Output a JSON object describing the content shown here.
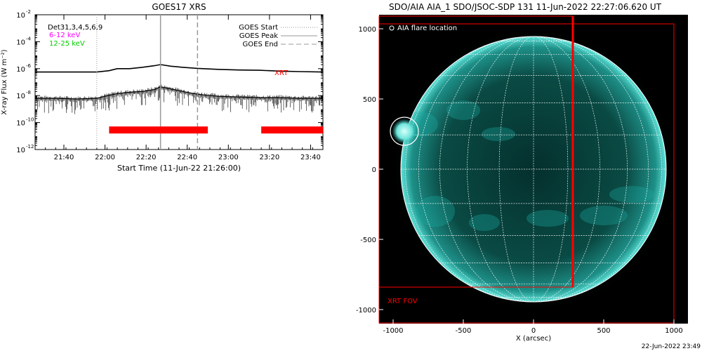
{
  "chart_data": [
    {
      "type": "line",
      "title": "GOES17 XRS",
      "xlabel": "Start Time (11-Jun-22 21:26:00)",
      "ylabel": "X-ray Flux (W m⁻²)",
      "y_scale": "log",
      "ylim_exponent": [
        -12,
        -2
      ],
      "xlim_minutes_from_start": [
        0,
        140
      ],
      "x_tick_labels": [
        "21:40",
        "22:00",
        "22:20",
        "22:40",
        "23:00",
        "23:20",
        "23:40"
      ],
      "y_tick_labels": [
        {
          "base": "10",
          "exp": "-2"
        },
        {
          "base": "10",
          "exp": "-4"
        },
        {
          "base": "10",
          "exp": "-6"
        },
        {
          "base": "10",
          "exp": "-8"
        },
        {
          "base": "10",
          "exp": "-10"
        },
        {
          "base": "10",
          "exp": "-12"
        }
      ],
      "annotations": {
        "detectors": "Det31,3,4,5,6,9",
        "band_low": "6-12 keV",
        "band_high": "12-25 keV",
        "xrt": "XRT"
      },
      "legend": {
        "placement": "top-right",
        "entries": [
          {
            "label": "GOES Start",
            "style": "dotted"
          },
          {
            "label": "GOES Peak",
            "style": "solid"
          },
          {
            "label": "GOES End",
            "style": "dashed"
          }
        ]
      },
      "events": {
        "goes_start": "21:56",
        "goes_peak": "22:27",
        "goes_end": "22:45"
      },
      "series": [
        {
          "name": "6-12 keV",
          "x": [
            "21:26",
            "21:36",
            "21:46",
            "21:56",
            "22:02",
            "22:06",
            "22:12",
            "22:18",
            "22:24",
            "22:27",
            "22:32",
            "22:38",
            "22:45",
            "22:55",
            "23:05",
            "23:15",
            "23:25",
            "23:35",
            "23:46"
          ],
          "y_exp": [
            -6.25,
            -6.25,
            -6.25,
            -6.25,
            -6.15,
            -6.0,
            -6.0,
            -5.9,
            -5.78,
            -5.7,
            -5.82,
            -5.9,
            -5.98,
            -6.05,
            -6.1,
            -6.12,
            -6.18,
            -6.22,
            -6.25
          ]
        },
        {
          "name": "12-25 keV",
          "x": [
            "21:26",
            "21:36",
            "21:46",
            "21:56",
            "22:00",
            "22:06",
            "22:12",
            "22:18",
            "22:24",
            "22:27",
            "22:32",
            "22:38",
            "22:45",
            "22:55",
            "23:05",
            "23:15",
            "23:25",
            "23:35",
            "23:46"
          ],
          "y_exp": [
            -8.2,
            -8.2,
            -8.25,
            -8.2,
            -8.05,
            -7.85,
            -7.75,
            -7.7,
            -7.55,
            -7.35,
            -7.5,
            -7.7,
            -7.9,
            -8.05,
            -8.1,
            -8.15,
            -8.15,
            -8.2,
            -8.2
          ]
        }
      ],
      "coverage_bars": {
        "name": "XRT",
        "color": "#ff0000",
        "intervals": [
          [
            "22:02",
            "22:50"
          ],
          [
            "23:16",
            "23:46"
          ]
        ]
      },
      "colors": {
        "band_low": "#ff00ff",
        "band_high": "#00cc00",
        "xrt": "#ff0000",
        "peak": "#999999"
      }
    },
    {
      "type": "scatter",
      "title": "SDO/AIA AIA_1 SDO/JSOC-SDP 131 11-Jun-2022 22:27:06.620 UT",
      "xlabel": "X (arcsec)",
      "ylabel": "",
      "xlim": [
        -1100,
        1100
      ],
      "ylim": [
        -1100,
        1100
      ],
      "x_tick_labels": [
        "-1000",
        "-500",
        "0",
        "500",
        "1000"
      ],
      "y_tick_labels": [
        "1000",
        "500",
        "0",
        "-500",
        "-1000"
      ],
      "legend": {
        "placement": "top-left",
        "entries": [
          {
            "label": "AIA flare location",
            "marker": "circle"
          }
        ]
      },
      "flare_location": {
        "x": -920,
        "y": 270,
        "radius_arcsec": 100
      },
      "solar_radius_arcsec": 945,
      "grid": true,
      "xrt_fov": {
        "label": "XRT FOV",
        "x": [
          -1100,
          1000
        ],
        "y": [
          -1095,
          1035
        ],
        "color": "#ff0000"
      },
      "xrt_column": {
        "x": 280,
        "y": [
          -840,
          1090
        ]
      },
      "xrt_box": {
        "x": [
          -1100,
          280
        ],
        "y": [
          -840,
          1090
        ]
      },
      "colors": {
        "disk": "#1aa8a0",
        "background": "#000000",
        "fov": "#ff0000"
      }
    }
  ],
  "footer_date": "22-Jun-2022 23:49"
}
